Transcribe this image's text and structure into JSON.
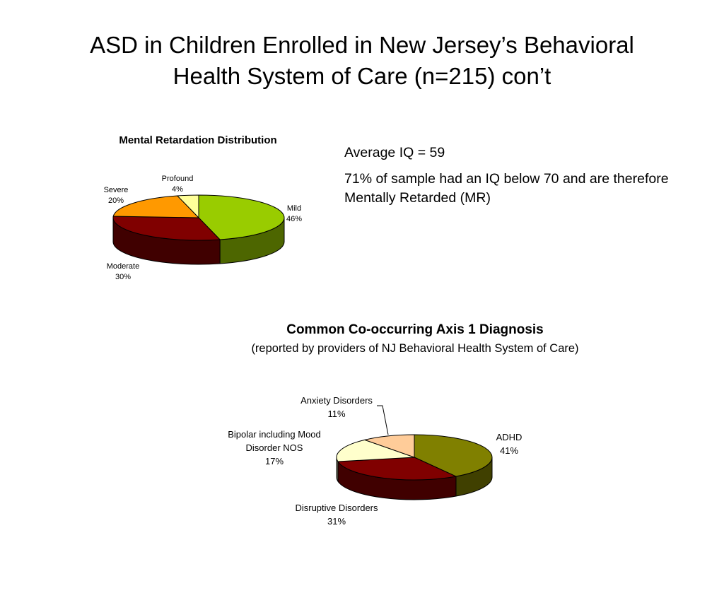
{
  "slide": {
    "title_line1": "ASD in Children Enrolled in New Jersey’s Behavioral",
    "title_line2": "Health System of Care (n=215) con’t"
  },
  "notes": {
    "average_iq": "Average IQ = 59",
    "mr_note": "71% of sample had an IQ below 70 and are therefore Mentally Retarded (MR)"
  },
  "chart_data": [
    {
      "type": "pie",
      "title": "Mental Retardation Distribution",
      "slices": [
        {
          "name": "Mild",
          "value": 46,
          "label": "46%",
          "color": "#99CC00",
          "side": "#4D6600"
        },
        {
          "name": "Moderate",
          "value": 30,
          "label": "30%",
          "color": "#800000",
          "side": "#400000"
        },
        {
          "name": "Severe",
          "value": 20,
          "label": "20%",
          "color": "#FF9900",
          "side": "#8A5300"
        },
        {
          "name": "Profound",
          "value": 4,
          "label": "4%",
          "color": "#FFFF99",
          "side": "#8A8A52"
        }
      ]
    },
    {
      "type": "pie",
      "title": "Common Co-occurring Axis 1 Diagnosis",
      "subtitle": "(reported by providers of NJ Behavioral Health System of Care)",
      "slices": [
        {
          "name": "ADHD",
          "value": 41,
          "label": "41%",
          "color": "#808000",
          "side": "#404000"
        },
        {
          "name": "Disruptive Disorders",
          "value": 31,
          "label": "31%",
          "color": "#800000",
          "side": "#400000"
        },
        {
          "name": "Bipolar including Mood Disorder NOS",
          "value": 17,
          "label": "17%",
          "color": "#FFFFCC",
          "side": "#8A8A6E"
        },
        {
          "name": "Anxiety Disorders",
          "value": 11,
          "label": "11%",
          "color": "#FFCC99",
          "side": "#8A6E52"
        }
      ]
    }
  ]
}
